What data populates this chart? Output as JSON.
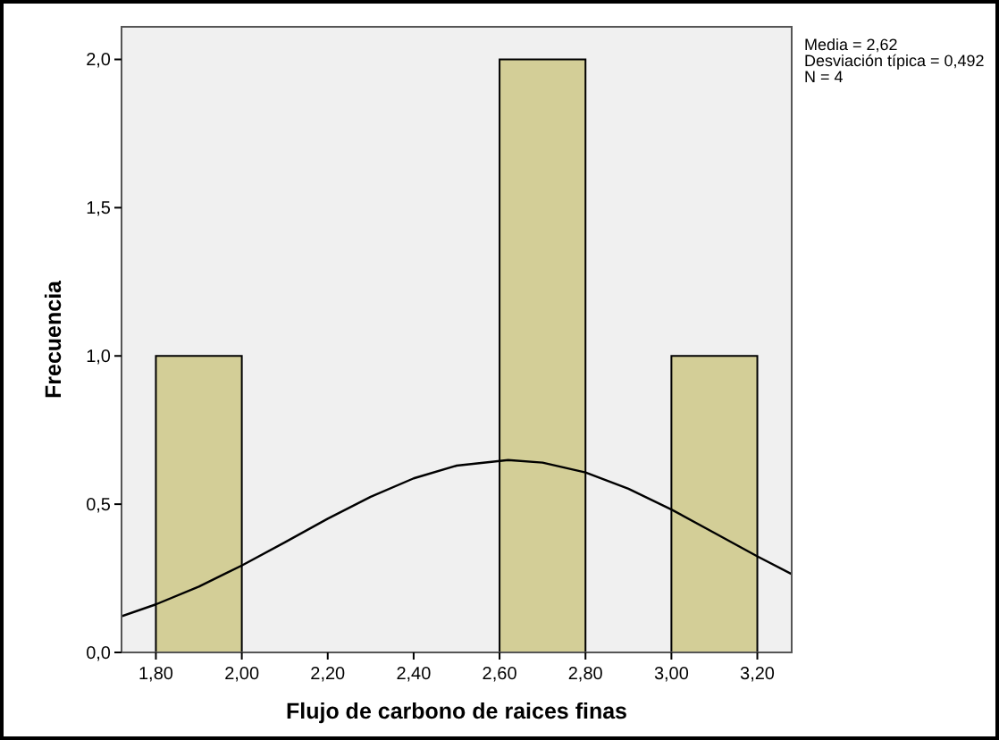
{
  "chart_data": {
    "type": "histogram",
    "xlabel": "Flujo de carbono de raices finas",
    "ylabel": "Frecuencia",
    "bins": [
      1.8,
      2.0,
      2.2,
      2.4,
      2.6,
      2.8,
      3.0,
      3.2
    ],
    "values": [
      1,
      0,
      0,
      0,
      2,
      0,
      1
    ],
    "color": "#d3ce97",
    "series": [
      {
        "type": "line",
        "color": "#000000",
        "x": [
          1.72,
          1.8,
          1.9,
          2.0,
          2.1,
          2.2,
          2.3,
          2.4,
          2.5,
          2.62,
          2.7,
          2.8,
          2.9,
          3.0,
          3.1,
          3.2,
          3.28
        ],
        "values": [
          0.122,
          0.162,
          0.222,
          0.293,
          0.371,
          0.451,
          0.525,
          0.587,
          0.63,
          0.649,
          0.64,
          0.607,
          0.552,
          0.482,
          0.403,
          0.324,
          0.264
        ]
      }
    ],
    "xlim": [
      1.72,
      3.28
    ],
    "ylim": [
      0,
      2.11
    ],
    "xticks": [
      {
        "value": 1.8,
        "label": "1,80"
      },
      {
        "value": 2.0,
        "label": "2,00"
      },
      {
        "value": 2.2,
        "label": "2,20"
      },
      {
        "value": 2.4,
        "label": "2,40"
      },
      {
        "value": 2.6,
        "label": "2,60"
      },
      {
        "value": 2.8,
        "label": "2,80"
      },
      {
        "value": 3.0,
        "label": "3,00"
      },
      {
        "value": 3.2,
        "label": "3,20"
      }
    ],
    "yticks": [
      {
        "value": 0,
        "label": "0,0"
      },
      {
        "value": 0.5,
        "label": "0,5"
      },
      {
        "value": 1.0,
        "label": "1,0"
      },
      {
        "value": 1.5,
        "label": "1,5"
      },
      {
        "value": 2.0,
        "label": "2,0"
      }
    ],
    "annotations": [
      "Media = 2,62",
      "Desviación típica = 0,492",
      "N = 4"
    ]
  }
}
